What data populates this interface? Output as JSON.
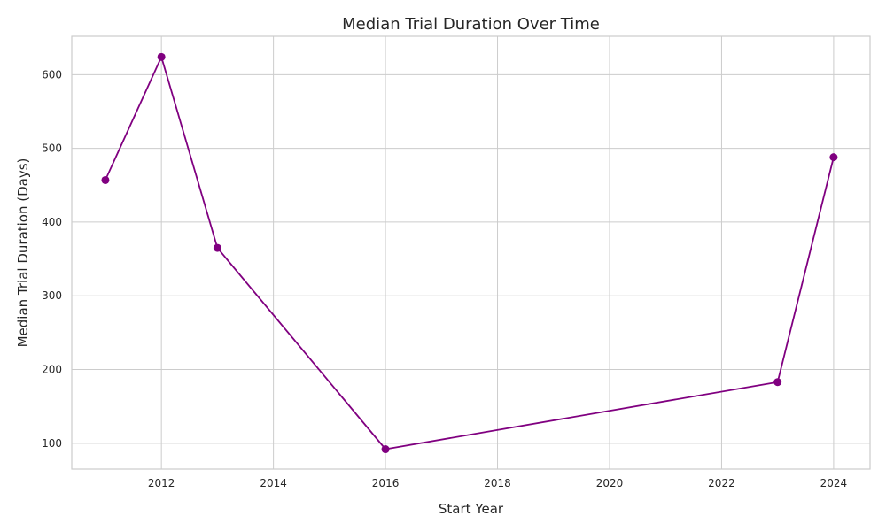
{
  "chart_data": {
    "type": "line",
    "title": "Median Trial Duration Over Time",
    "xlabel": "Start Year",
    "ylabel": "Median Trial Duration (Days)",
    "xlim": [
      2010.4,
      2024.65
    ],
    "ylim": [
      65,
      652
    ],
    "xticks": [
      2012,
      2014,
      2016,
      2018,
      2020,
      2022,
      2024
    ],
    "yticks": [
      100,
      200,
      300,
      400,
      500,
      600
    ],
    "grid": true,
    "legend": "none",
    "series": [
      {
        "color": "#800080",
        "x": [
          2011,
          2012,
          2013,
          2016,
          2023,
          2024
        ],
        "y": [
          457,
          624,
          365,
          92,
          183,
          488
        ]
      }
    ]
  }
}
